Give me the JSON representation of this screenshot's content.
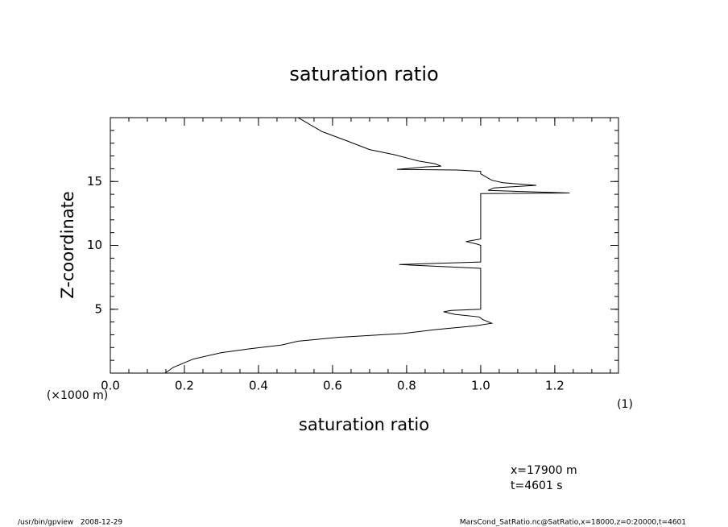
{
  "chart_data": {
    "type": "line",
    "title": "saturation ratio",
    "x_label": "saturation ratio",
    "x_unit": "(1)",
    "y_label": "Z-coordinate",
    "y_unit": "(×1000 m)",
    "xlim": [
      0,
      1.372
    ],
    "ylim": [
      0,
      20
    ],
    "xticks": [
      {
        "value": 0,
        "label": "0.0"
      },
      0.2,
      0.4,
      0.6,
      0.8,
      {
        "value": 1,
        "label": "1.0"
      },
      1.2
    ],
    "yticks": [
      5,
      10,
      15
    ],
    "minor_xtick_step": 0.05,
    "minor_ytick_step": 1,
    "color": "#000000",
    "series": [
      {
        "values": [
          0.148,
          0.17,
          0.224,
          0.3,
          0.376,
          0.463,
          0.507,
          0.615,
          0.79,
          0.876,
          0.985,
          1.03,
          1.005,
          0.996,
          0.93,
          0.9,
          0.92,
          1.0,
          1.0,
          0.78,
          1.0,
          1.0,
          0.99,
          0.96,
          1.0,
          1.0,
          1.24,
          1.02,
          1.035,
          1.15,
          1.06,
          1.03,
          1.0,
          1.0,
          0.937,
          0.774,
          0.855,
          0.893,
          0.876,
          0.833,
          0.767,
          0.7,
          0.637,
          0.572,
          0.507
        ],
        "z": [
          0,
          0.45,
          1.1,
          1.6,
          1.9,
          2.2,
          2.5,
          2.8,
          3.1,
          3.4,
          3.7,
          3.9,
          4.2,
          4.4,
          4.6,
          4.8,
          4.9,
          5.0,
          8.2,
          8.5,
          8.7,
          10.0,
          10.1,
          10.3,
          10.5,
          14.05,
          14.1,
          14.3,
          14.5,
          14.7,
          14.9,
          15.1,
          15.6,
          15.8,
          15.9,
          15.95,
          16.15,
          16.2,
          16.4,
          16.6,
          17.1,
          17.5,
          18.2,
          18.9,
          20
        ]
      }
    ],
    "annotations": [
      "x=17900 m",
      "t=4601 s"
    ],
    "footer_left": "/usr/bin/gpview   2008-12-29",
    "footer_right": "MarsCond_SatRatio.nc@SatRatio,x=18000,z=0:20000,t=4601"
  }
}
